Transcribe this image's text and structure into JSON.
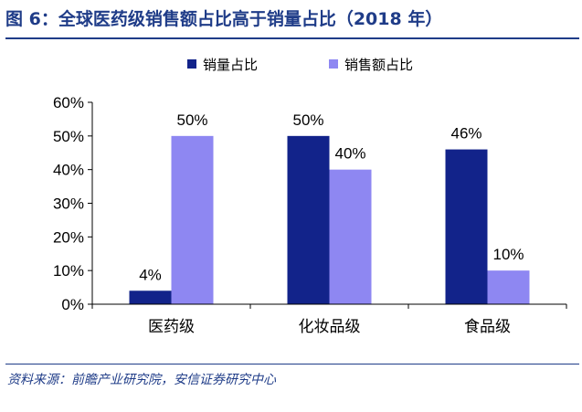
{
  "figure": {
    "title": "图 6：全球医药级销售额占比高于销量占比（2018 年）",
    "source": "资料来源：前瞻产业研究院，安信证券研究中心"
  },
  "chart_data": {
    "type": "bar",
    "categories": [
      "医药级",
      "化妆品级",
      "食品级"
    ],
    "series": [
      {
        "name": "销量占比",
        "values": [
          4,
          50,
          46
        ],
        "labels": [
          "4%",
          "50%",
          "46%"
        ],
        "color": "#12238a"
      },
      {
        "name": "销售额占比",
        "values": [
          50,
          40,
          10
        ],
        "labels": [
          "50%",
          "40%",
          "10%"
        ],
        "color": "#8e87f2"
      }
    ],
    "yticks": [
      "0%",
      "10%",
      "20%",
      "30%",
      "40%",
      "50%",
      "60%"
    ],
    "ylim": [
      0,
      60
    ],
    "legend_position": "top",
    "grid": false
  }
}
